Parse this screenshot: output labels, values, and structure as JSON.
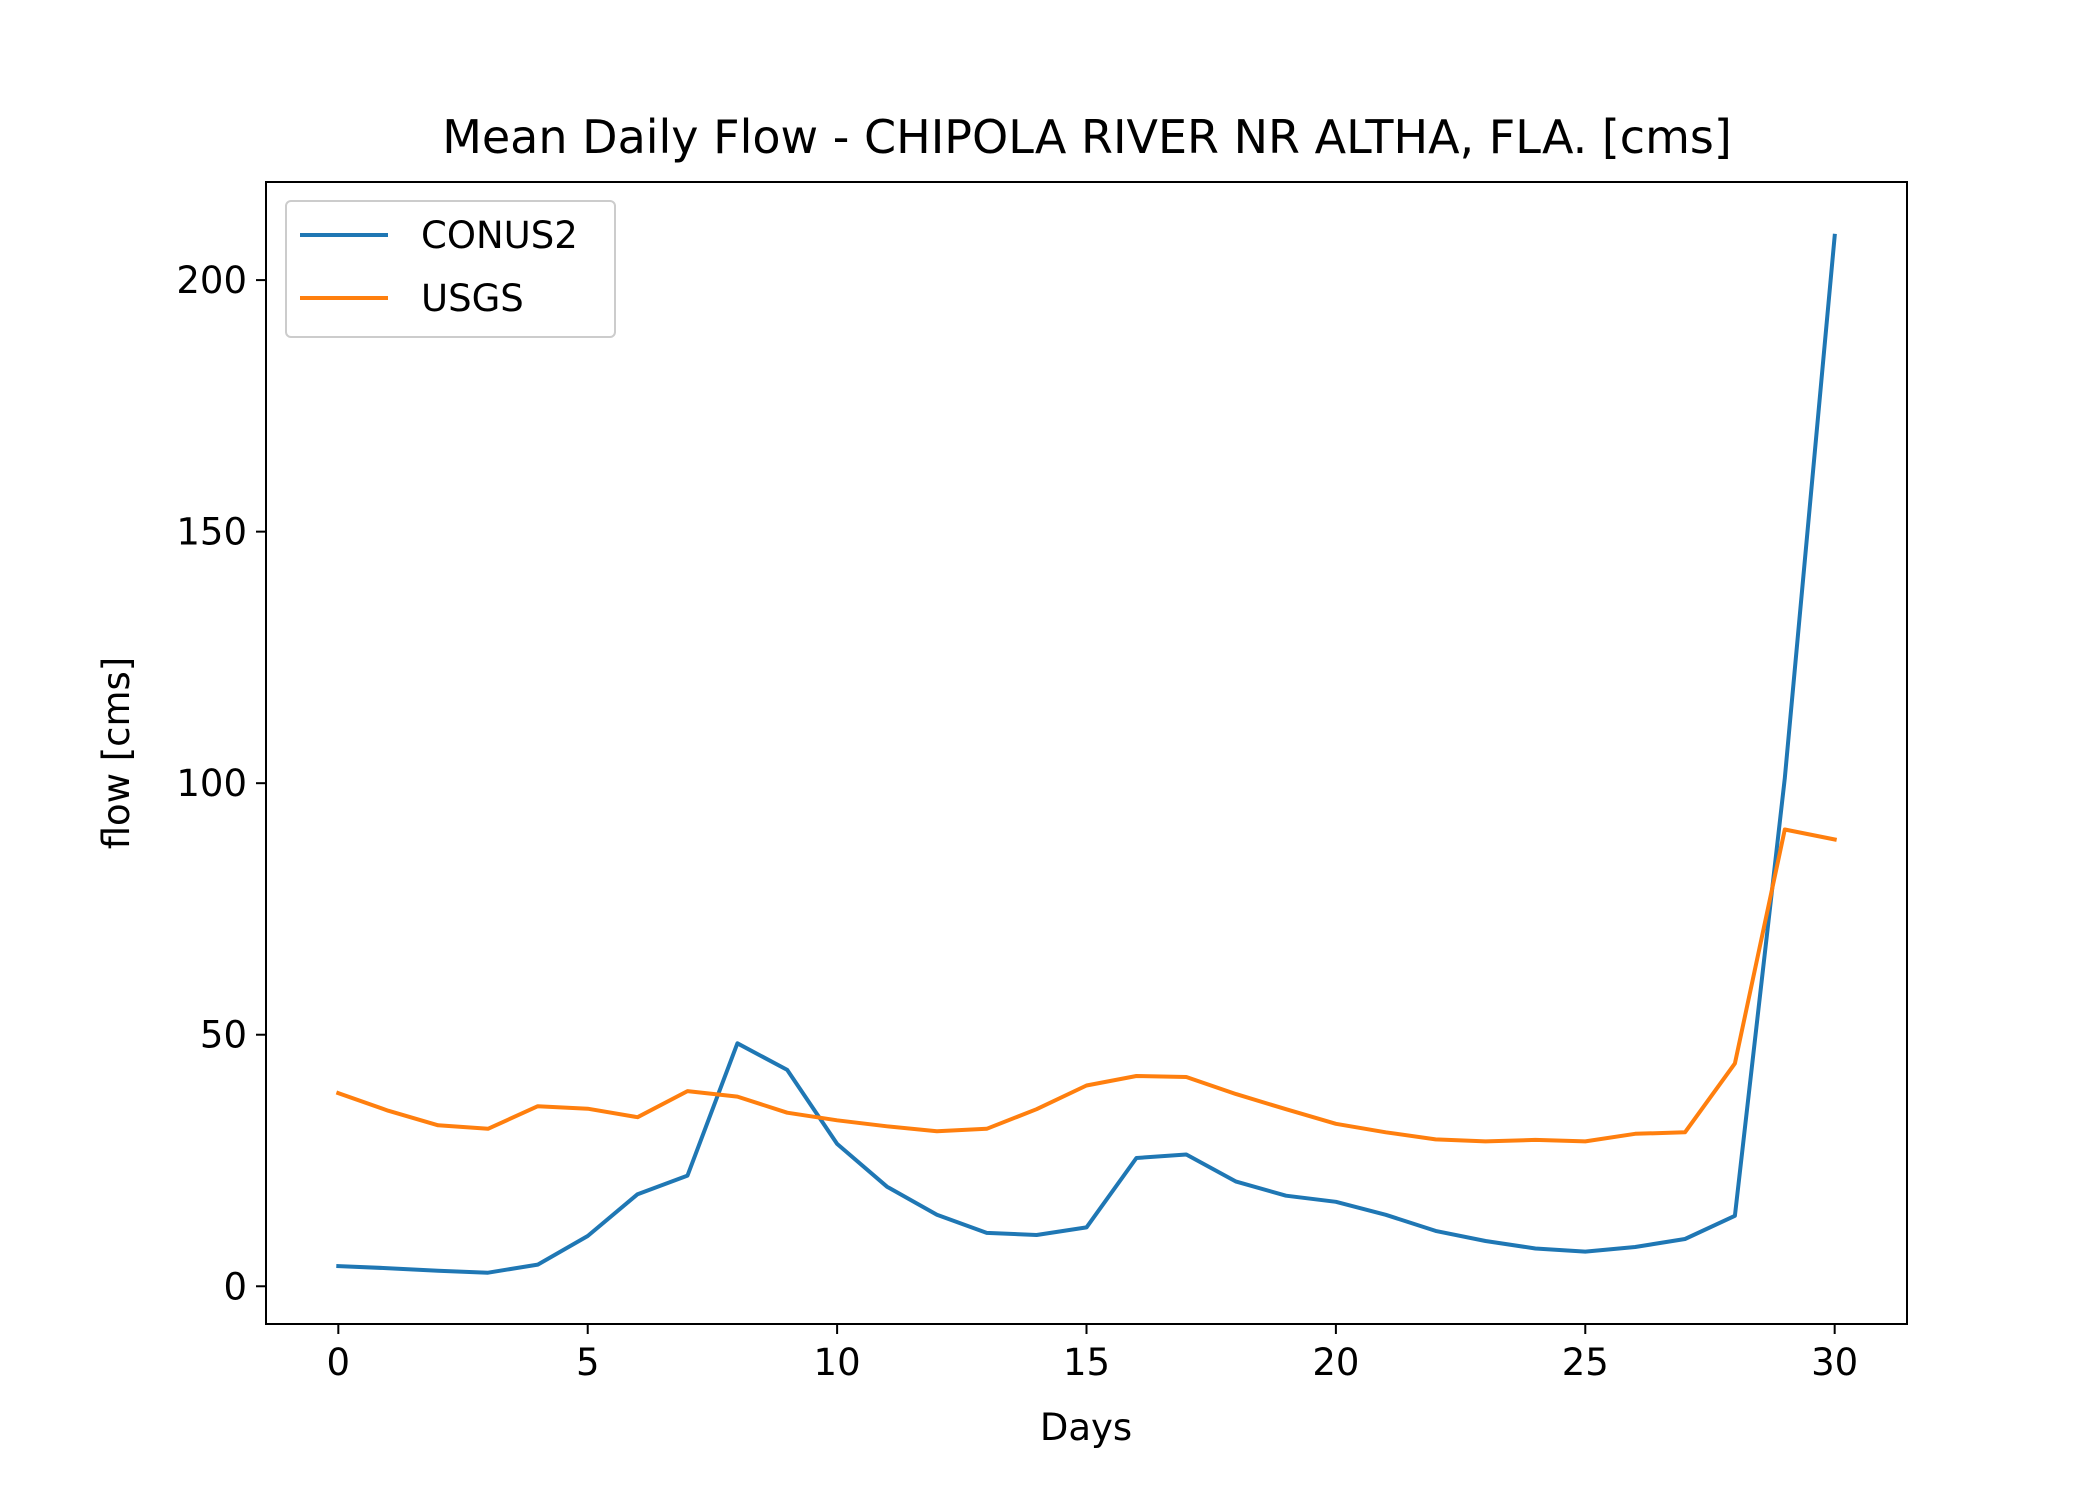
{
  "chart_data": {
    "type": "line",
    "title": "Mean Daily Flow - CHIPOLA RIVER NR ALTHA, FLA. [cms]",
    "xlabel": "Days",
    "ylabel": "flow [cms]",
    "xlim": [
      -1.45,
      31.45
    ],
    "ylim": [
      -7.5,
      219.5
    ],
    "xticks": [
      0,
      5,
      10,
      15,
      20,
      25,
      30
    ],
    "yticks": [
      0,
      50,
      100,
      150,
      200
    ],
    "xtick_labels": [
      "0",
      "5",
      "10",
      "15",
      "20",
      "25",
      "30"
    ],
    "ytick_labels": [
      "0",
      "50",
      "100",
      "150",
      "200"
    ],
    "grid": false,
    "legend_position": "upper-left",
    "x": [
      0,
      1,
      2,
      3,
      4,
      5,
      6,
      7,
      8,
      9,
      10,
      11,
      12,
      13,
      14,
      15,
      16,
      17,
      18,
      19,
      20,
      21,
      22,
      23,
      24,
      25,
      26,
      27,
      28,
      29,
      30
    ],
    "series": [
      {
        "name": "CONUS2",
        "color": "#1f77b4",
        "values": [
          4.0,
          3.6,
          3.1,
          2.7,
          4.3,
          10.0,
          18.3,
          22.0,
          48.3,
          43.0,
          28.3,
          19.8,
          14.2,
          10.6,
          10.2,
          11.7,
          25.5,
          26.2,
          20.8,
          18.0,
          16.8,
          14.2,
          11.0,
          9.0,
          7.5,
          6.9,
          7.8,
          9.4,
          14.0,
          101.0,
          208.8
        ]
      },
      {
        "name": "USGS",
        "color": "#ff7f0e",
        "values": [
          38.4,
          34.9,
          32.0,
          31.3,
          35.8,
          35.3,
          33.6,
          38.8,
          37.7,
          34.5,
          33.0,
          31.8,
          30.8,
          31.3,
          35.2,
          39.9,
          41.8,
          41.6,
          38.2,
          35.2,
          32.3,
          30.6,
          29.2,
          28.8,
          29.1,
          28.8,
          30.3,
          30.6,
          44.3,
          90.8,
          88.8
        ]
      }
    ]
  }
}
